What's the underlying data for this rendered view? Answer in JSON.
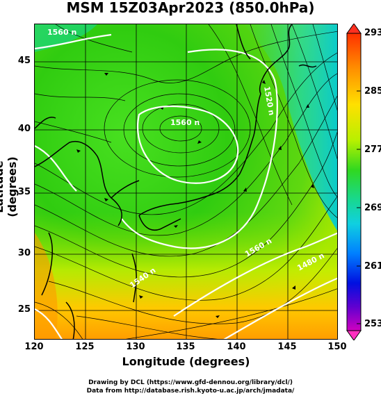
{
  "title": "MSM 15Z03Apr2023 (850.0hPa)",
  "xlabel": "Longitude (degrees)",
  "ylabel": "Latitude  (degrees)",
  "xticks": [
    "120",
    "125",
    "130",
    "135",
    "140",
    "145",
    "150"
  ],
  "yticks": [
    "45",
    "40",
    "35",
    "30",
    "25"
  ],
  "colorbar": {
    "labels": [
      "293",
      "285",
      "277",
      "269",
      "261",
      "253"
    ],
    "colors": [
      "#ff2a00",
      "#ffb000",
      "#d8ff00",
      "#28dd10",
      "#10e0b0",
      "#00a0ff",
      "#0020ff",
      "#b000d0"
    ]
  },
  "contour_labels": {
    "north": "1560 n",
    "center": "1560 n",
    "east": "1520 n",
    "south_east": "1560 n",
    "far_east": "1480 n",
    "south": "1540 n"
  },
  "footer": {
    "line1": "Drawing by DCL (https://www.gfd-dennou.org/library/dcl/)",
    "line2": "Data from http://database.rish.kyoto-u.ac.jp/arch/jmadata/"
  },
  "chart_data": {
    "type": "heatmap",
    "x_range": [
      120,
      150
    ],
    "y_range": [
      23,
      48
    ],
    "colorbar_range": [
      253,
      293
    ],
    "overlays": [
      "wind streamlines",
      "geopotential height contours (white)",
      "coastlines",
      "grid"
    ]
  }
}
